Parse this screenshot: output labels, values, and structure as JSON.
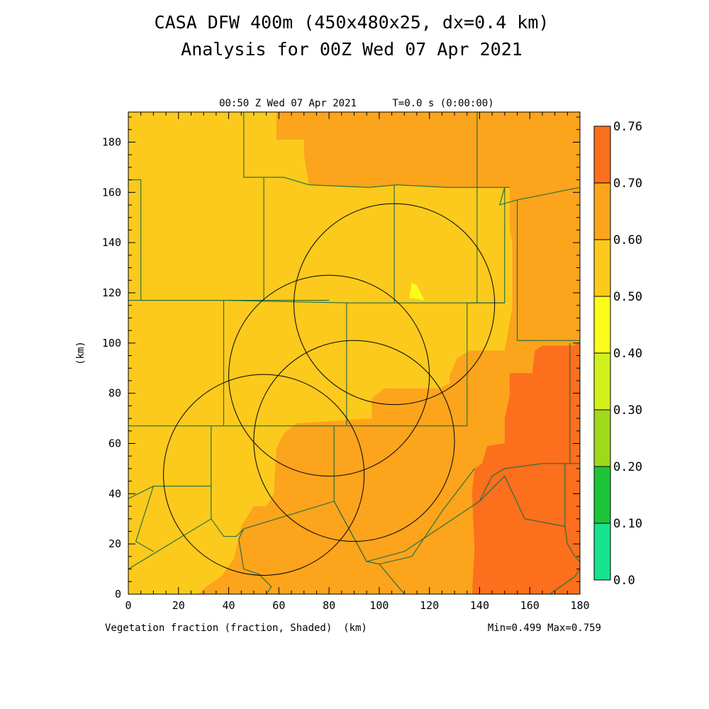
{
  "title_line1": "CASA DFW 400m (450x480x25, dx=0.4 km)",
  "title_line2": "Analysis for 00Z Wed 07 Apr 2021",
  "valid_time": "00:50 Z Wed 07 Apr 2021",
  "model_time": "T=0.0 s (0:00:00)",
  "footer_field": "Vegetation fraction (fraction, Shaded)",
  "footer_unit": "(km)",
  "footer_stats": "Min=0.499 Max=0.759",
  "colors": {
    "band_050_060": "#fcca1c",
    "band_060_070": "#fca41c",
    "band_070_076": "#fc6f1c",
    "band_040_050": "#fcfc1c",
    "boundary": "#1f6b44",
    "ring": "#000000"
  },
  "chart_data": {
    "type": "heatmap",
    "title": "CASA DFW 400m (450x480x25, dx=0.4 km)",
    "subtitle": "Analysis for 00Z Wed 07 Apr 2021",
    "variable": "Vegetation fraction (fraction, Shaded)",
    "xlabel": "(km)",
    "ylabel": "(km)",
    "xlim": [
      0,
      180
    ],
    "ylim": [
      0,
      192
    ],
    "x_ticks": [
      "0",
      "20",
      "40",
      "60",
      "80",
      "100",
      "120",
      "140",
      "160",
      "180"
    ],
    "y_ticks": [
      "0",
      "20",
      "40",
      "60",
      "80",
      "100",
      "120",
      "140",
      "160",
      "180"
    ],
    "colorbar": {
      "levels": [
        "0.0",
        "0.10",
        "0.20",
        "0.30",
        "0.40",
        "0.50",
        "0.60",
        "0.70",
        "0.76"
      ],
      "colors": [
        "#17e38f",
        "#1cc43a",
        "#a0d81c",
        "#d2f01c",
        "#fcfc1c",
        "#fcca1c",
        "#fca41c",
        "#fc6f1c"
      ]
    },
    "min": 0.499,
    "max": 0.759,
    "zones": [
      {
        "band": "0.60-0.70",
        "polygon": [
          [
            59,
            192
          ],
          [
            59,
            181
          ],
          [
            70,
            181
          ],
          [
            70,
            175
          ],
          [
            72,
            163
          ],
          [
            96,
            162
          ],
          [
            107,
            163
          ],
          [
            127,
            162
          ],
          [
            138,
            162
          ],
          [
            152,
            162
          ],
          [
            152,
            146
          ],
          [
            153,
            140
          ],
          [
            153,
            114
          ],
          [
            150,
            97
          ],
          [
            136,
            97
          ],
          [
            131,
            94
          ],
          [
            128,
            87
          ],
          [
            128,
            84
          ],
          [
            124,
            82
          ],
          [
            102,
            82
          ],
          [
            97,
            78
          ],
          [
            97,
            70
          ],
          [
            67,
            68
          ],
          [
            62,
            64
          ],
          [
            59,
            58
          ],
          [
            58,
            40
          ],
          [
            55,
            35
          ],
          [
            50,
            35
          ],
          [
            45,
            27
          ],
          [
            42,
            14
          ],
          [
            37,
            7
          ],
          [
            31,
            3
          ],
          [
            28,
            0
          ],
          [
            180,
            0
          ],
          [
            180,
            192
          ]
        ]
      },
      {
        "band": "0.70-0.76",
        "polygon": [
          [
            180,
            100
          ],
          [
            177,
            99
          ],
          [
            165,
            99
          ],
          [
            162,
            97
          ],
          [
            161,
            88
          ],
          [
            152,
            88
          ],
          [
            152,
            79
          ],
          [
            150,
            70
          ],
          [
            150,
            60
          ],
          [
            143,
            59
          ],
          [
            141,
            52
          ],
          [
            138,
            50
          ],
          [
            137,
            40
          ],
          [
            138,
            18
          ],
          [
            137,
            0
          ],
          [
            180,
            0
          ]
        ]
      },
      {
        "band": "0.40-0.50",
        "polygon": [
          [
            113,
            124
          ],
          [
            112,
            118
          ],
          [
            118,
            117
          ],
          [
            115,
            123
          ]
        ]
      }
    ],
    "rings": [
      {
        "cx": 80,
        "cy": 87,
        "r": 40
      },
      {
        "cx": 106,
        "cy": 115.5,
        "r": 40
      },
      {
        "cx": 90,
        "cy": 61,
        "r": 40
      },
      {
        "cx": 54,
        "cy": 47.5,
        "r": 40
      }
    ]
  }
}
